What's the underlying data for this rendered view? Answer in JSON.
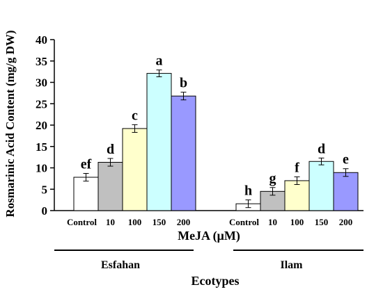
{
  "chart_data": {
    "type": "bar",
    "ylabel": "Rosmarinic Acid Content (mg/g DW)",
    "xlabel": "MeJA (µM)",
    "group_axis_label": "Ecotypes",
    "ylim": [
      0,
      40
    ],
    "yticks": [
      0,
      5,
      10,
      15,
      20,
      25,
      30,
      35,
      40
    ],
    "grid": false,
    "legend": "none",
    "groups": [
      {
        "name": "Esfahan",
        "bars": [
          {
            "label": "Control",
            "value": 7.8,
            "error": 0.9,
            "letter": "ef",
            "color": "#ffffff"
          },
          {
            "label": "10",
            "value": 11.3,
            "error": 0.9,
            "letter": "d",
            "color": "#c0c0c0"
          },
          {
            "label": "100",
            "value": 19.2,
            "error": 0.9,
            "letter": "c",
            "color": "#ffffcc"
          },
          {
            "label": "150",
            "value": 32.1,
            "error": 0.8,
            "letter": "a",
            "color": "#ccffff"
          },
          {
            "label": "200",
            "value": 26.8,
            "error": 0.9,
            "letter": "b",
            "color": "#9999ff"
          }
        ]
      },
      {
        "name": "Ilam",
        "bars": [
          {
            "label": "Control",
            "value": 1.6,
            "error": 0.9,
            "letter": "h",
            "color": "#ffffff"
          },
          {
            "label": "10",
            "value": 4.5,
            "error": 0.9,
            "letter": "g",
            "color": "#c0c0c0"
          },
          {
            "label": "100",
            "value": 7.0,
            "error": 0.9,
            "letter": "f",
            "color": "#ffffcc"
          },
          {
            "label": "150",
            "value": 11.5,
            "error": 0.8,
            "letter": "d",
            "color": "#ccffff"
          },
          {
            "label": "200",
            "value": 8.9,
            "error": 0.9,
            "letter": "e",
            "color": "#9999ff"
          }
        ]
      }
    ]
  }
}
